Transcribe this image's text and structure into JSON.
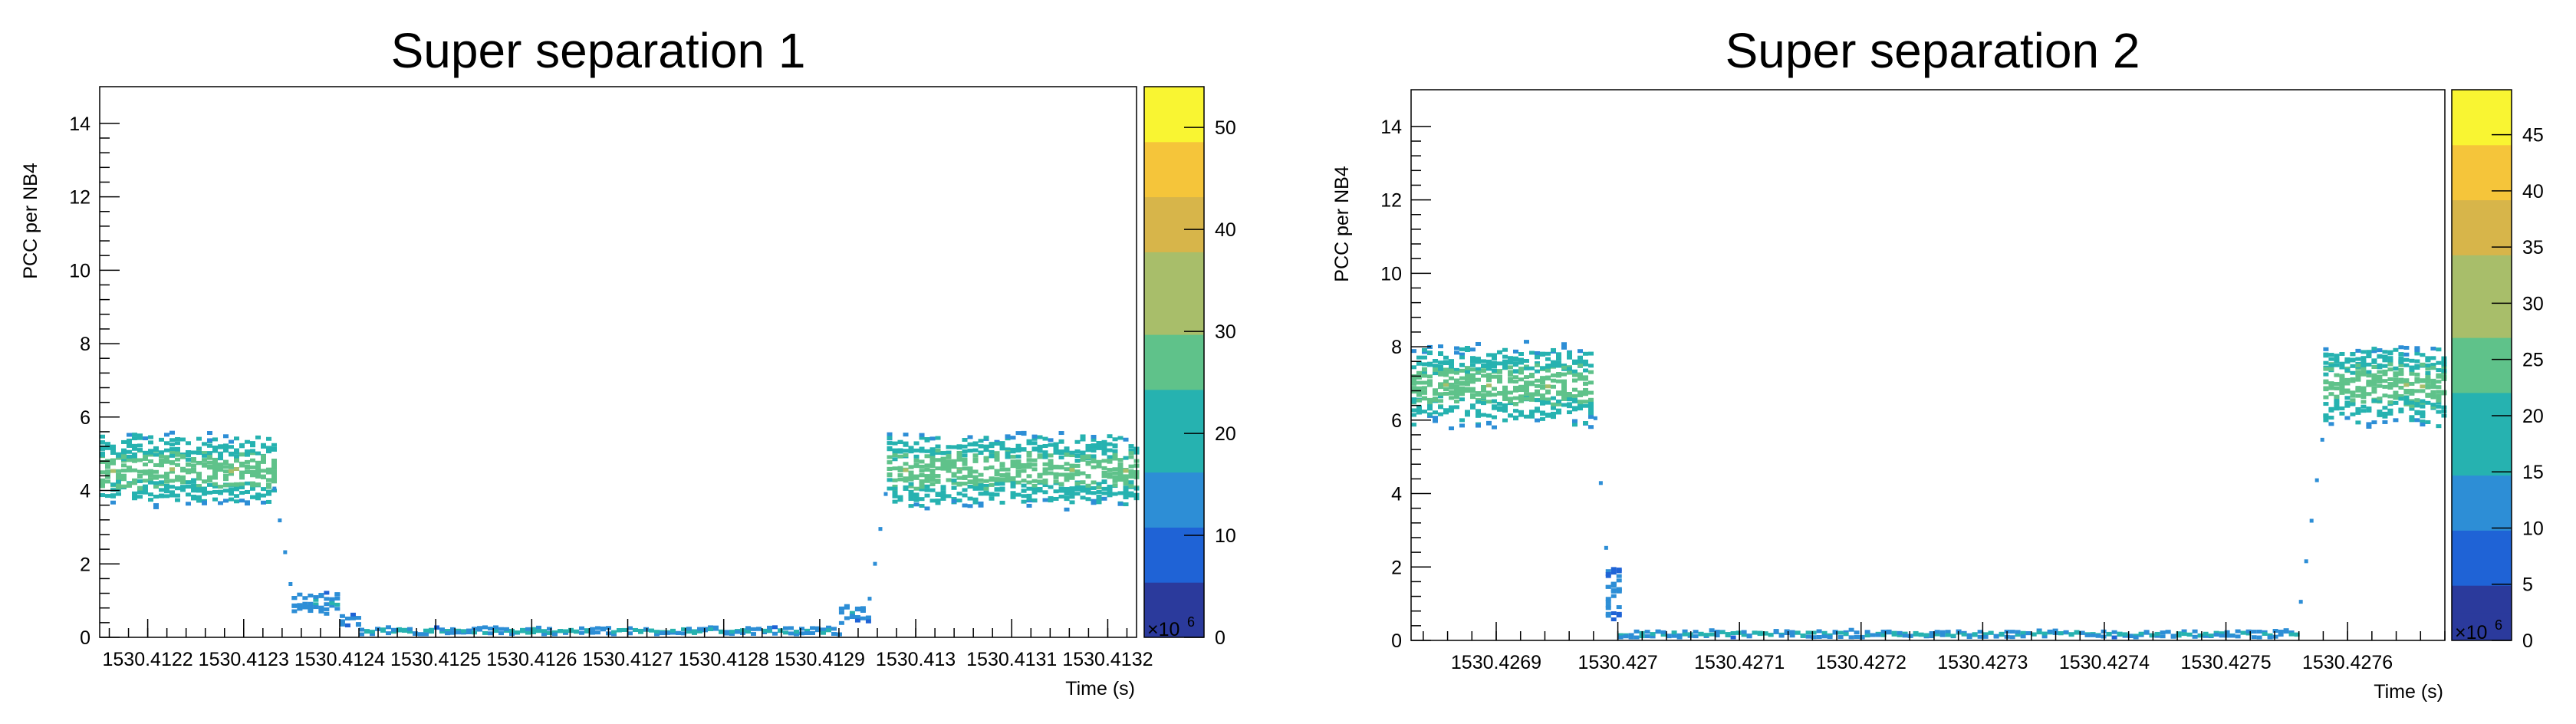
{
  "chart_data": [
    {
      "type": "heatmap",
      "title": "Super separation 1",
      "xlabel": "Time (s)",
      "ylabel": "PCC per NB4",
      "xlim": [
        1530.41215,
        1530.41323
      ],
      "ylim": [
        0,
        15
      ],
      "x_ticks": [
        {
          "value": 1530.4122,
          "label": "1530.4122"
        },
        {
          "value": 1530.4123,
          "label": "1530.4123"
        },
        {
          "value": 1530.4124,
          "label": "1530.4124"
        },
        {
          "value": 1530.4125,
          "label": "1530.4125"
        },
        {
          "value": 1530.4126,
          "label": "1530.4126"
        },
        {
          "value": 1530.4127,
          "label": "1530.4127"
        },
        {
          "value": 1530.4128,
          "label": "1530.4128"
        },
        {
          "value": 1530.4129,
          "label": "1530.4129"
        },
        {
          "value": 1530.413,
          "label": "1530.413"
        },
        {
          "value": 1530.4131,
          "label": "1530.4131"
        },
        {
          "value": 1530.4132,
          "label": "1530.4132"
        }
      ],
      "x_exponent_label": "×10",
      "x_exponent_power": "6",
      "y_ticks": [
        0,
        2,
        4,
        6,
        8,
        10,
        12,
        14
      ],
      "colorbar": {
        "min": 0,
        "max": 54,
        "ticks": [
          0,
          10,
          20,
          30,
          40,
          50
        ]
      },
      "segments": [
        {
          "x_start": 1530.41215,
          "x_end": 1530.41233,
          "y_center": 4.5,
          "y_spread": 1.1,
          "intensity": 0.45
        },
        {
          "x_start": 1530.41233,
          "x_end": 1530.41235,
          "y_start": 4.0,
          "y_end": 0.9,
          "intensity": 0.2
        },
        {
          "x_start": 1530.41235,
          "x_end": 1530.4124,
          "y_center": 0.9,
          "y_spread": 0.35,
          "intensity": 0.25
        },
        {
          "x_start": 1530.4124,
          "x_end": 1530.41242,
          "y_center": 0.4,
          "y_spread": 0.2,
          "intensity": 0.25
        },
        {
          "x_start": 1530.41242,
          "x_end": 1530.41292,
          "y_center": 0.12,
          "y_spread": 0.12,
          "intensity": 0.3
        },
        {
          "x_start": 1530.41292,
          "x_end": 1530.41295,
          "y_center": 0.6,
          "y_spread": 0.3,
          "intensity": 0.25
        },
        {
          "x_start": 1530.41295,
          "x_end": 1530.41297,
          "y_start": 1.0,
          "y_end": 4.4,
          "intensity": 0.2
        },
        {
          "x_start": 1530.41297,
          "x_end": 1530.41323,
          "y_center": 4.5,
          "y_spread": 1.1,
          "intensity": 0.45
        }
      ]
    },
    {
      "type": "heatmap",
      "title": "Super separation 2",
      "xlabel": "Time (s)",
      "ylabel": "PCC per NB4",
      "xlim": [
        1530.42683,
        1530.42768
      ],
      "ylim": [
        0,
        15
      ],
      "x_ticks": [
        {
          "value": 1530.4269,
          "label": "1530.4269"
        },
        {
          "value": 1530.427,
          "label": "1530.427"
        },
        {
          "value": 1530.4271,
          "label": "1530.4271"
        },
        {
          "value": 1530.4272,
          "label": "1530.4272"
        },
        {
          "value": 1530.4273,
          "label": "1530.4273"
        },
        {
          "value": 1530.4274,
          "label": "1530.4274"
        },
        {
          "value": 1530.4275,
          "label": "1530.4275"
        },
        {
          "value": 1530.4276,
          "label": "1530.4276"
        }
      ],
      "x_exponent_label": "×10",
      "x_exponent_power": "6",
      "y_ticks": [
        0,
        2,
        4,
        6,
        8,
        10,
        12,
        14
      ],
      "colorbar": {
        "min": 0,
        "max": 49,
        "ticks": [
          0,
          5,
          10,
          15,
          20,
          25,
          30,
          35,
          40,
          45
        ]
      },
      "segments": [
        {
          "x_start": 1530.42683,
          "x_end": 1530.42698,
          "y_center": 6.9,
          "y_spread": 1.2,
          "intensity": 0.45
        },
        {
          "x_start": 1530.42698,
          "x_end": 1530.42699,
          "y_start": 6.0,
          "y_end": 2.0,
          "intensity": 0.2
        },
        {
          "x_start": 1530.42699,
          "x_end": 1530.427,
          "y_center": 1.2,
          "y_spread": 0.8,
          "intensity": 0.2
        },
        {
          "x_start": 1530.427,
          "x_end": 1530.42756,
          "y_center": 0.12,
          "y_spread": 0.12,
          "intensity": 0.3
        },
        {
          "x_start": 1530.42756,
          "x_end": 1530.42758,
          "y_start": 1.0,
          "y_end": 6.0,
          "intensity": 0.2
        },
        {
          "x_start": 1530.42758,
          "x_end": 1530.42768,
          "y_center": 6.9,
          "y_spread": 1.2,
          "intensity": 0.45
        }
      ]
    }
  ],
  "colormap": [
    "#2b3a9c",
    "#1f63d6",
    "#2d8ed6",
    "#26b2b0",
    "#5fc28a",
    "#a8be6a",
    "#d7b54a",
    "#f5c53a",
    "#f9f532"
  ]
}
